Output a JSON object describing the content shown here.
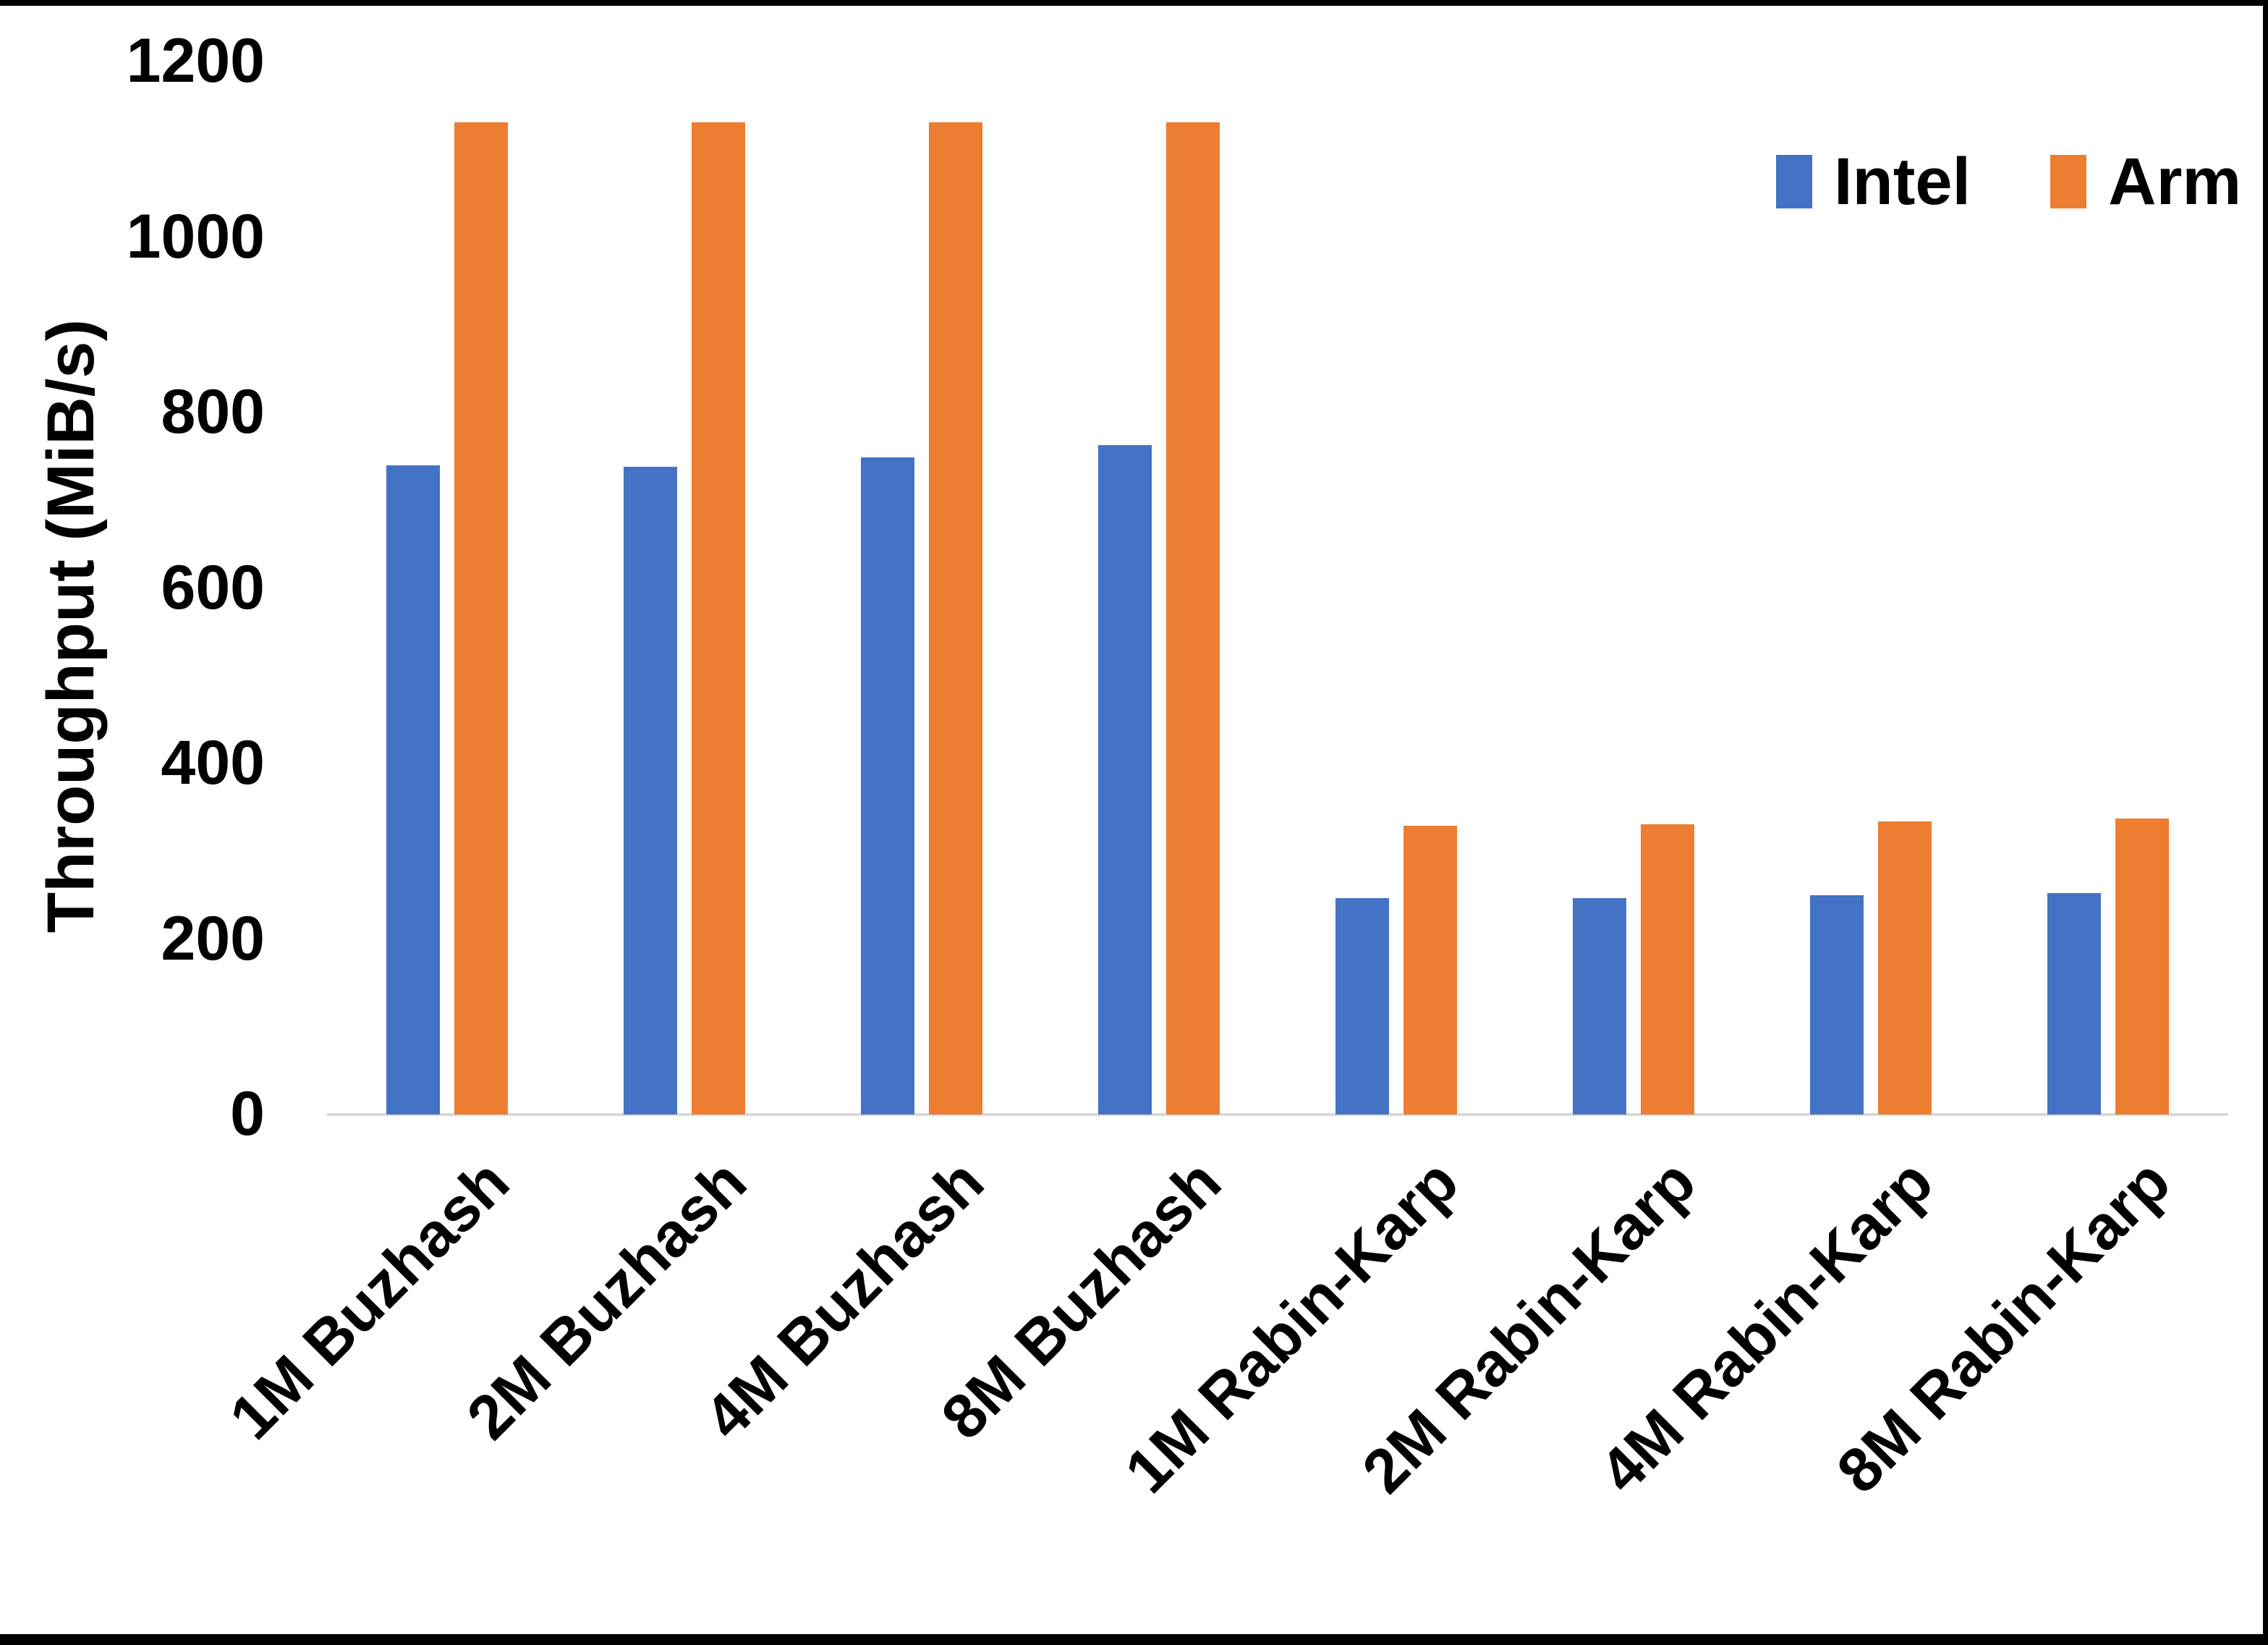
{
  "chart_data": {
    "type": "bar",
    "title": "",
    "xlabel": "",
    "ylabel": "Throughput (MiB/s)",
    "ylim": [
      0,
      1200
    ],
    "yticks": [
      0,
      200,
      400,
      600,
      800,
      1000,
      1200
    ],
    "grid": false,
    "legend_position": "top-right",
    "categories": [
      "1M Buzhash",
      "2M Buzhash",
      "4M Buzhash",
      "8M Buzhash",
      "1M Rabin-Karp",
      "2M Rabin-Karp",
      "4M Rabin-Karp",
      "8M Rabin-Karp"
    ],
    "series": [
      {
        "name": "Intel",
        "color": "#4472C4",
        "values": [
          740,
          738,
          749,
          763,
          247,
          247,
          250,
          252
        ]
      },
      {
        "name": "Arm",
        "color": "#ED7D31",
        "values": [
          1131,
          1131,
          1131,
          1131,
          329,
          331,
          334,
          337
        ]
      }
    ]
  },
  "colors": {
    "background": "#FFFFFF",
    "axis_line": "#D9D9D9",
    "text": "#000000",
    "border": "#000000"
  }
}
